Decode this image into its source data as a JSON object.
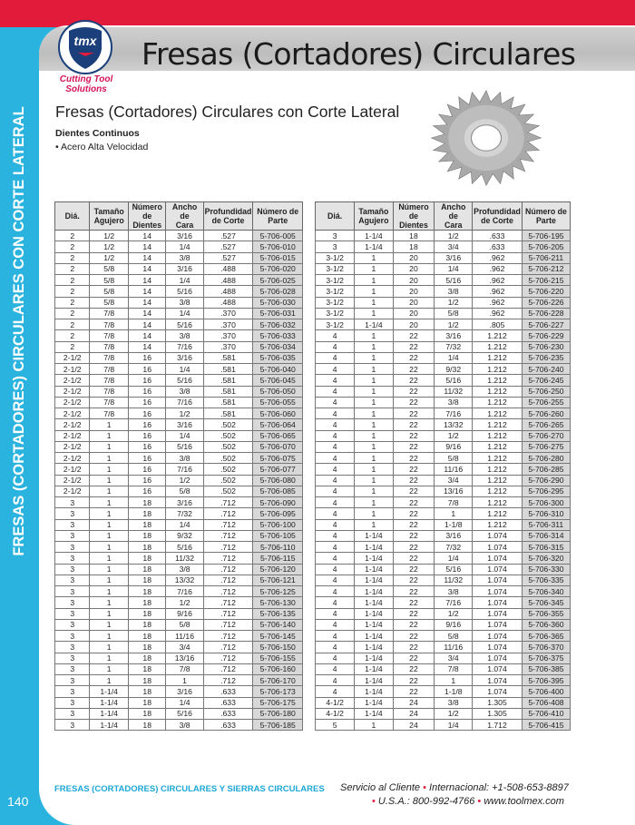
{
  "header": {
    "title": "Fresas (Cortadores) Circulares",
    "logo_text": "tmx",
    "tagline_1": "Cutting Tool",
    "tagline_2": "Solutions"
  },
  "side_label": "FRESAS (CORTADORES) CIRCULARES CON CORTE LATERAL",
  "section": {
    "title": "Fresas (Cortadores) Circulares con Corte Lateral",
    "heading": "Dientes Continuos",
    "bullet": "• Acero Alta Velocidad"
  },
  "colors": {
    "red": "#e31b3b",
    "cyan": "#29b3de",
    "magenta": "#d4145a"
  },
  "table": {
    "columns": [
      [
        "Diá.",
        ""
      ],
      [
        "Tamaño",
        "Agujero"
      ],
      [
        "Número de",
        "Dientes"
      ],
      [
        "Ancho de",
        "Cara"
      ],
      [
        "Profundidad",
        "de Corte"
      ],
      [
        "Número de",
        "Parte"
      ]
    ],
    "left_rows": [
      [
        "2",
        "1/2",
        "14",
        "3/16",
        ".527",
        "5-706-005"
      ],
      [
        "2",
        "1/2",
        "14",
        "1/4",
        ".527",
        "5-706-010"
      ],
      [
        "2",
        "1/2",
        "14",
        "3/8",
        ".527",
        "5-706-015"
      ],
      [
        "2",
        "5/8",
        "14",
        "3/16",
        ".488",
        "5-706-020"
      ],
      [
        "2",
        "5/8",
        "14",
        "1/4",
        ".488",
        "5-706-025"
      ],
      [
        "2",
        "5/8",
        "14",
        "5/16",
        ".488",
        "5-706-028"
      ],
      [
        "2",
        "5/8",
        "14",
        "3/8",
        ".488",
        "5-706-030"
      ],
      [
        "2",
        "7/8",
        "14",
        "1/4",
        ".370",
        "5-706-031"
      ],
      [
        "2",
        "7/8",
        "14",
        "5/16",
        ".370",
        "5-706-032"
      ],
      [
        "2",
        "7/8",
        "14",
        "3/8",
        ".370",
        "5-706-033"
      ],
      [
        "2",
        "7/8",
        "14",
        "7/16",
        ".370",
        "5-706-034"
      ],
      [
        "2-1/2",
        "7/8",
        "16",
        "3/16",
        ".581",
        "5-706-035"
      ],
      [
        "2-1/2",
        "7/8",
        "16",
        "1/4",
        ".581",
        "5-706-040"
      ],
      [
        "2-1/2",
        "7/8",
        "16",
        "5/16",
        ".581",
        "5-706-045"
      ],
      [
        "2-1/2",
        "7/8",
        "16",
        "3/8",
        ".581",
        "5-706-050"
      ],
      [
        "2-1/2",
        "7/8",
        "16",
        "7/16",
        ".581",
        "5-706-055"
      ],
      [
        "2-1/2",
        "7/8",
        "16",
        "1/2",
        ".581",
        "5-706-060"
      ],
      [
        "2-1/2",
        "1",
        "16",
        "3/16",
        ".502",
        "5-706-064"
      ],
      [
        "2-1/2",
        "1",
        "16",
        "1/4",
        ".502",
        "5-706-065"
      ],
      [
        "2-1/2",
        "1",
        "16",
        "5/16",
        ".502",
        "5-706-070"
      ],
      [
        "2-1/2",
        "1",
        "16",
        "3/8",
        ".502",
        "5-706-075"
      ],
      [
        "2-1/2",
        "1",
        "16",
        "7/16",
        ".502",
        "5-706-077"
      ],
      [
        "2-1/2",
        "1",
        "16",
        "1/2",
        ".502",
        "5-706-080"
      ],
      [
        "2-1/2",
        "1",
        "16",
        "5/8",
        ".502",
        "5-706-085"
      ],
      [
        "3",
        "1",
        "18",
        "3/16",
        ".712",
        "5-706-090"
      ],
      [
        "3",
        "1",
        "18",
        "7/32",
        ".712",
        "5-706-095"
      ],
      [
        "3",
        "1",
        "18",
        "1/4",
        ".712",
        "5-706-100"
      ],
      [
        "3",
        "1",
        "18",
        "9/32",
        ".712",
        "5-706-105"
      ],
      [
        "3",
        "1",
        "18",
        "5/16",
        ".712",
        "5-706-110"
      ],
      [
        "3",
        "1",
        "18",
        "11/32",
        ".712",
        "5-706-115"
      ],
      [
        "3",
        "1",
        "18",
        "3/8",
        ".712",
        "5-706-120"
      ],
      [
        "3",
        "1",
        "18",
        "13/32",
        ".712",
        "5-706-121"
      ],
      [
        "3",
        "1",
        "18",
        "7/16",
        ".712",
        "5-706-125"
      ],
      [
        "3",
        "1",
        "18",
        "1/2",
        ".712",
        "5-706-130"
      ],
      [
        "3",
        "1",
        "18",
        "9/16",
        ".712",
        "5-706-135"
      ],
      [
        "3",
        "1",
        "18",
        "5/8",
        ".712",
        "5-706-140"
      ],
      [
        "3",
        "1",
        "18",
        "11/16",
        ".712",
        "5-706-145"
      ],
      [
        "3",
        "1",
        "18",
        "3/4",
        ".712",
        "5-706-150"
      ],
      [
        "3",
        "1",
        "18",
        "13/16",
        ".712",
        "5-706-155"
      ],
      [
        "3",
        "1",
        "18",
        "7/8",
        ".712",
        "5-706-160"
      ],
      [
        "3",
        "1",
        "18",
        "1",
        ".712",
        "5-706-170"
      ],
      [
        "3",
        "1-1/4",
        "18",
        "3/16",
        ".633",
        "5-706-173"
      ],
      [
        "3",
        "1-1/4",
        "18",
        "1/4",
        ".633",
        "5-706-175"
      ],
      [
        "3",
        "1-1/4",
        "18",
        "5/16",
        ".633",
        "5-706-180"
      ],
      [
        "3",
        "1-1/4",
        "18",
        "3/8",
        ".633",
        "5-706-185"
      ]
    ],
    "right_rows": [
      [
        "3",
        "1-1/4",
        "18",
        "1/2",
        ".633",
        "5-706-195"
      ],
      [
        "3",
        "1-1/4",
        "18",
        "3/4",
        ".633",
        "5-706-205"
      ],
      [
        "3-1/2",
        "1",
        "20",
        "3/16",
        ".962",
        "5-706-211"
      ],
      [
        "3-1/2",
        "1",
        "20",
        "1/4",
        ".962",
        "5-706-212"
      ],
      [
        "3-1/2",
        "1",
        "20",
        "5/16",
        ".962",
        "5-706-215"
      ],
      [
        "3-1/2",
        "1",
        "20",
        "3/8",
        ".962",
        "5-706-220"
      ],
      [
        "3-1/2",
        "1",
        "20",
        "1/2",
        ".962",
        "5-706-226"
      ],
      [
        "3-1/2",
        "1",
        "20",
        "5/8",
        ".962",
        "5-706-228"
      ],
      [
        "3-1/2",
        "1-1/4",
        "20",
        "1/2",
        ".805",
        "5-706-227"
      ],
      [
        "4",
        "1",
        "22",
        "3/16",
        "1.212",
        "5-706-229"
      ],
      [
        "4",
        "1",
        "22",
        "7/32",
        "1.212",
        "5-706-230"
      ],
      [
        "4",
        "1",
        "22",
        "1/4",
        "1.212",
        "5-706-235"
      ],
      [
        "4",
        "1",
        "22",
        "9/32",
        "1.212",
        "5-706-240"
      ],
      [
        "4",
        "1",
        "22",
        "5/16",
        "1.212",
        "5-706-245"
      ],
      [
        "4",
        "1",
        "22",
        "11/32",
        "1.212",
        "5-706-250"
      ],
      [
        "4",
        "1",
        "22",
        "3/8",
        "1.212",
        "5-706-255"
      ],
      [
        "4",
        "1",
        "22",
        "7/16",
        "1.212",
        "5-706-260"
      ],
      [
        "4",
        "1",
        "22",
        "13/32",
        "1.212",
        "5-706-265"
      ],
      [
        "4",
        "1",
        "22",
        "1/2",
        "1.212",
        "5-706-270"
      ],
      [
        "4",
        "1",
        "22",
        "9/16",
        "1.212",
        "5-706-275"
      ],
      [
        "4",
        "1",
        "22",
        "5/8",
        "1.212",
        "5-706-280"
      ],
      [
        "4",
        "1",
        "22",
        "11/16",
        "1.212",
        "5-706-285"
      ],
      [
        "4",
        "1",
        "22",
        "3/4",
        "1.212",
        "5-706-290"
      ],
      [
        "4",
        "1",
        "22",
        "13/16",
        "1.212",
        "5-706-295"
      ],
      [
        "4",
        "1",
        "22",
        "7/8",
        "1.212",
        "5-706-300"
      ],
      [
        "4",
        "1",
        "22",
        "1",
        "1.212",
        "5-706-310"
      ],
      [
        "4",
        "1",
        "22",
        "1-1/8",
        "1.212",
        "5-706-311"
      ],
      [
        "4",
        "1-1/4",
        "22",
        "3/16",
        "1.074",
        "5-706-314"
      ],
      [
        "4",
        "1-1/4",
        "22",
        "7/32",
        "1.074",
        "5-706-315"
      ],
      [
        "4",
        "1-1/4",
        "22",
        "1/4",
        "1.074",
        "5-706-320"
      ],
      [
        "4",
        "1-1/4",
        "22",
        "5/16",
        "1.074",
        "5-706-330"
      ],
      [
        "4",
        "1-1/4",
        "22",
        "11/32",
        "1.074",
        "5-706-335"
      ],
      [
        "4",
        "1-1/4",
        "22",
        "3/8",
        "1.074",
        "5-706-340"
      ],
      [
        "4",
        "1-1/4",
        "22",
        "7/16",
        "1.074",
        "5-706-345"
      ],
      [
        "4",
        "1-1/4",
        "22",
        "1/2",
        "1.074",
        "5-706-355"
      ],
      [
        "4",
        "1-1/4",
        "22",
        "9/16",
        "1.074",
        "5-706-360"
      ],
      [
        "4",
        "1-1/4",
        "22",
        "5/8",
        "1.074",
        "5-706-365"
      ],
      [
        "4",
        "1-1/4",
        "22",
        "11/16",
        "1.074",
        "5-706-370"
      ],
      [
        "4",
        "1-1/4",
        "22",
        "3/4",
        "1.074",
        "5-706-375"
      ],
      [
        "4",
        "1-1/4",
        "22",
        "7/8",
        "1.074",
        "5-706-385"
      ],
      [
        "4",
        "1-1/4",
        "22",
        "1",
        "1.074",
        "5-706-395"
      ],
      [
        "4",
        "1-1/4",
        "22",
        "1-1/8",
        "1.074",
        "5-706-400"
      ],
      [
        "4-1/2",
        "1-1/4",
        "24",
        "3/8",
        "1.305",
        "5-706-408"
      ],
      [
        "4-1/2",
        "1-1/4",
        "24",
        "1/2",
        "1.305",
        "5-706-410"
      ],
      [
        "5",
        "1",
        "24",
        "1/4",
        "1.712",
        "5-706-415"
      ]
    ]
  },
  "footer": {
    "section": "FRESAS (CORTADORES) CIRCULARES Y SIERRAS CIRCULARES",
    "service": "Servicio al Cliente",
    "intl": "Internacional: +1-508-653-8897",
    "usa": "U.S.A.: 800-992-4766",
    "web": "www.toolmex.com",
    "bullet": "•",
    "page": "140"
  }
}
